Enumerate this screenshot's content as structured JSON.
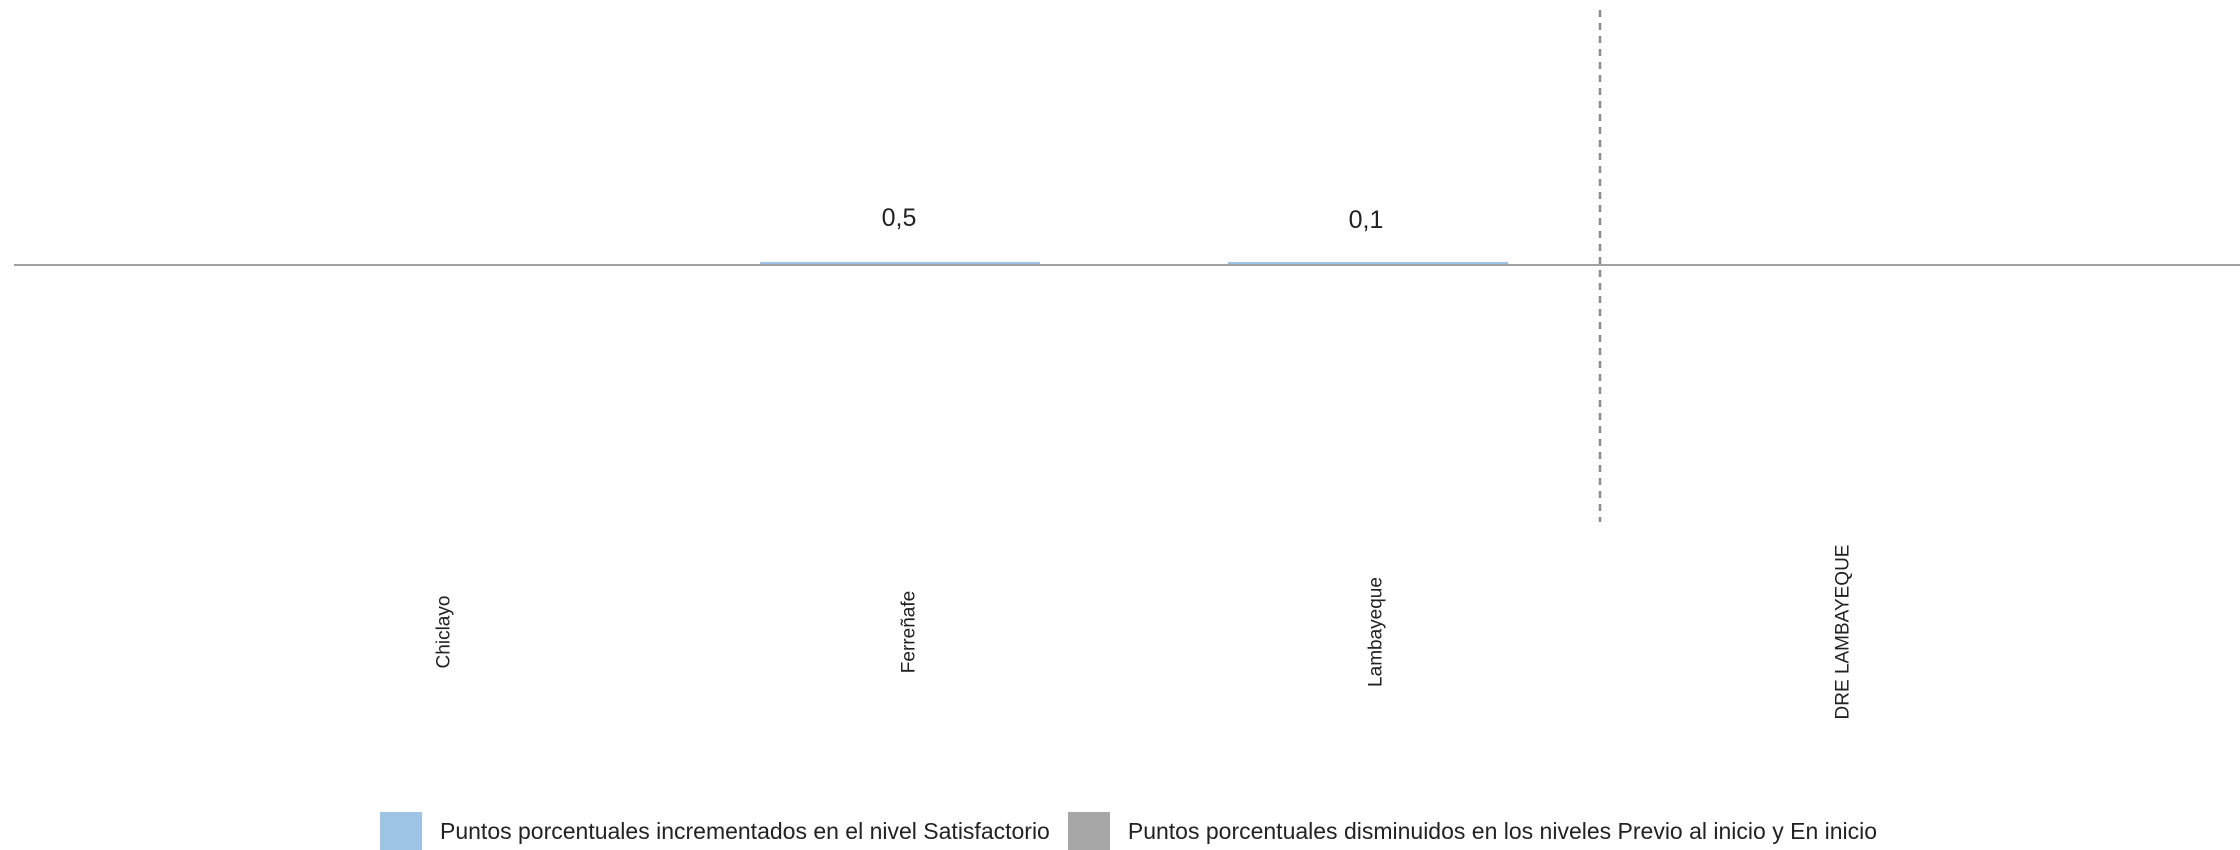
{
  "chart_data": {
    "type": "bar",
    "categories": [
      "Chiclayo",
      "Ferreñafe",
      "Lambayeque",
      "DRE LAMBAYEQUE"
    ],
    "series": [
      {
        "name": "Puntos porcentuales incrementados en el nivel Satisfactorio",
        "color": "#9dc3e6",
        "values": [
          null,
          0.5,
          0.1,
          null
        ],
        "labels": [
          "",
          "0,5",
          "0,1",
          ""
        ]
      },
      {
        "name": "Puntos porcentuales disminuidos en los niveles Previo al inicio y En inicio",
        "color": "#a6a6a6",
        "values": [
          null,
          null,
          null,
          null
        ],
        "labels": [
          "",
          "",
          "",
          ""
        ]
      }
    ],
    "title": "",
    "xlabel": "",
    "ylabel": "",
    "ylim": [
      -40,
      40
    ],
    "grid": false,
    "separator_after_category": "Lambayeque",
    "legend_position": "bottom",
    "colors": {
      "axis": "#a0a0a0",
      "separator": "#8c8c8c",
      "text": "#222222"
    }
  }
}
